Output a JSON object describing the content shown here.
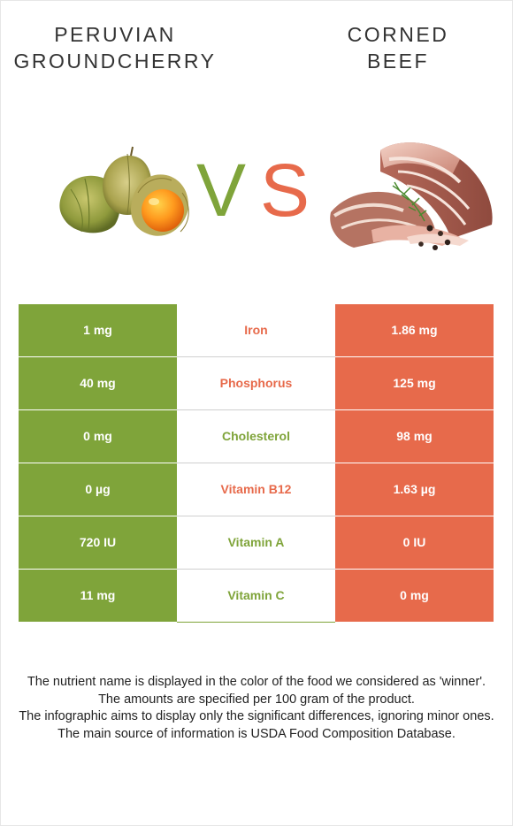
{
  "colors": {
    "groundcherry": "#7fa43a",
    "beef": "#e76a4b",
    "text": "#333333"
  },
  "header": {
    "left_title": "PERUVIAN\nGROUNDCHERRY",
    "right_title": "CORNED\nBEEF",
    "vs_v": "V",
    "vs_s": "S"
  },
  "images": {
    "left": "groundcherry-image",
    "right": "corned-beef-image"
  },
  "rows": [
    {
      "left": "1 mg",
      "nutrient": "Iron",
      "right": "1.86 mg",
      "winner": "beef"
    },
    {
      "left": "40 mg",
      "nutrient": "Phosphorus",
      "right": "125 mg",
      "winner": "beef"
    },
    {
      "left": "0 mg",
      "nutrient": "Cholesterol",
      "right": "98 mg",
      "winner": "groundcherry"
    },
    {
      "left": "0 µg",
      "nutrient": "Vitamin B12",
      "right": "1.63 µg",
      "winner": "beef"
    },
    {
      "left": "720 IU",
      "nutrient": "Vitamin A",
      "right": "0 IU",
      "winner": "groundcherry"
    },
    {
      "left": "11 mg",
      "nutrient": "Vitamin C",
      "right": "0 mg",
      "winner": "groundcherry"
    }
  ],
  "footer": [
    "The nutrient name is displayed in the color of the food we considered as 'winner'.",
    "The amounts are specified per 100 gram of the product.",
    "The infographic aims to display only the significant differences, ignoring minor ones.",
    "The main source of information is USDA Food Composition Database."
  ]
}
